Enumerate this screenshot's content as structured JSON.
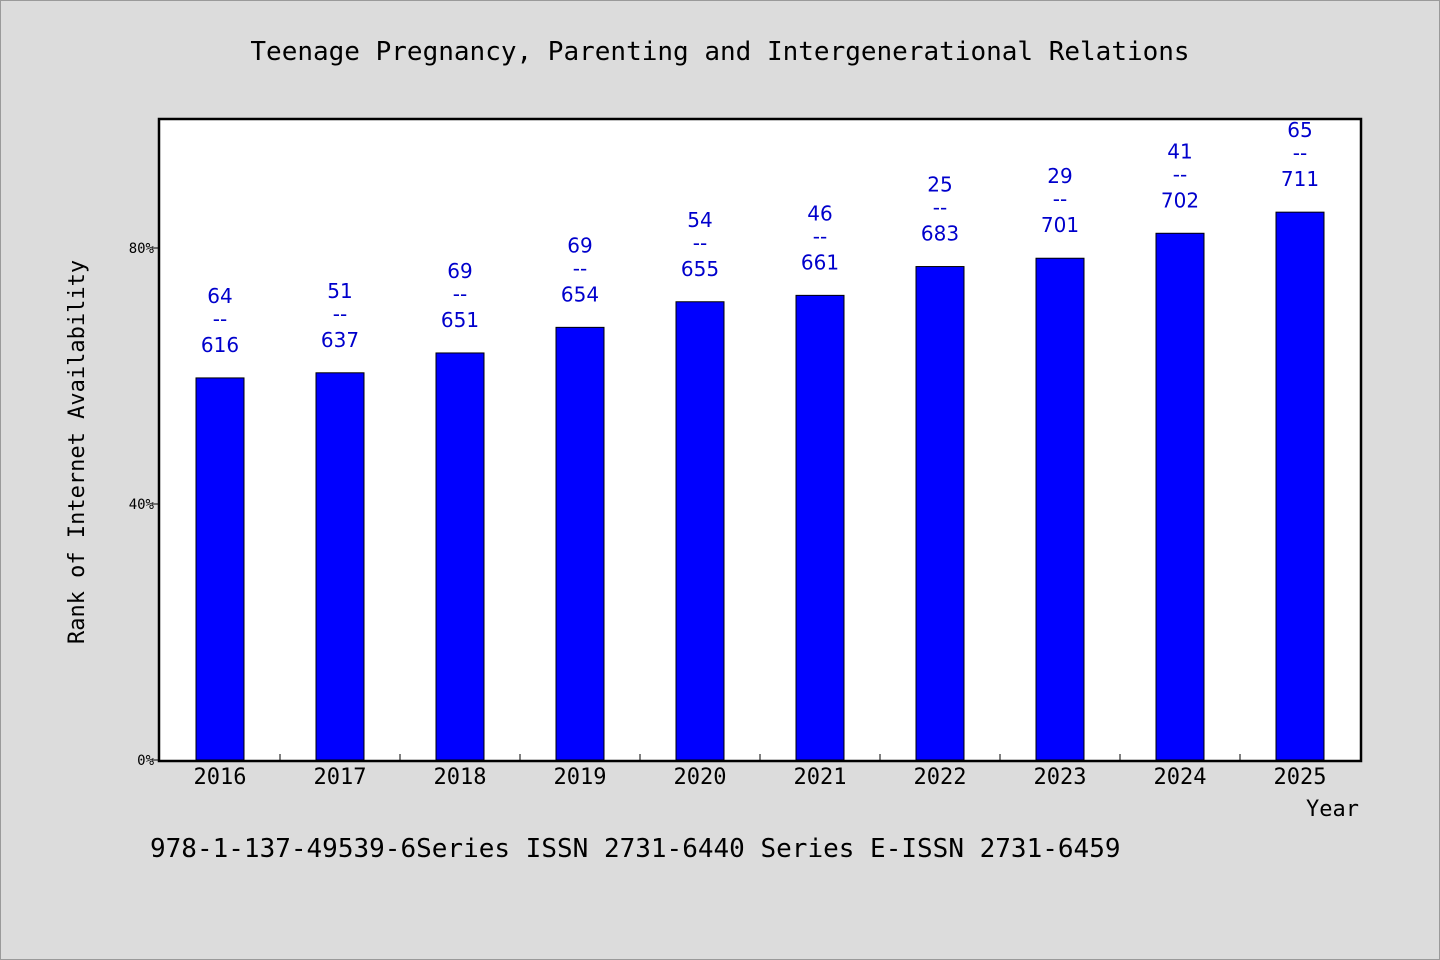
{
  "chart_data": {
    "type": "bar",
    "title": "Teenage Pregnancy, Parenting and Intergenerational Relations",
    "xlabel": "Year",
    "ylabel": "Rank of Internet Availability",
    "categories": [
      "2016",
      "2017",
      "2018",
      "2019",
      "2020",
      "2021",
      "2022",
      "2023",
      "2024",
      "2025"
    ],
    "values": [
      59.7,
      60.5,
      63.6,
      67.6,
      71.6,
      72.6,
      77.1,
      78.4,
      82.3,
      85.6
    ],
    "data_labels_top": [
      "64",
      "51",
      "69",
      "69",
      "54",
      "46",
      "25",
      "29",
      "41",
      "65"
    ],
    "data_labels_bottom": [
      "616",
      "637",
      "651",
      "654",
      "655",
      "661",
      "683",
      "701",
      "702",
      "711"
    ],
    "data_label_separator": "--",
    "yticks": [
      0,
      40,
      80
    ],
    "ytick_labels": [
      "0%",
      "40%",
      "80%"
    ],
    "ylim": [
      0,
      100
    ],
    "bar_color": "#0000ff",
    "label_color": "#0000cc",
    "grid": false,
    "legend": "none"
  },
  "footer": {
    "text": "978-1-137-49539-6Series ISSN 2731-6440 Series E-ISSN 2731-6459"
  }
}
